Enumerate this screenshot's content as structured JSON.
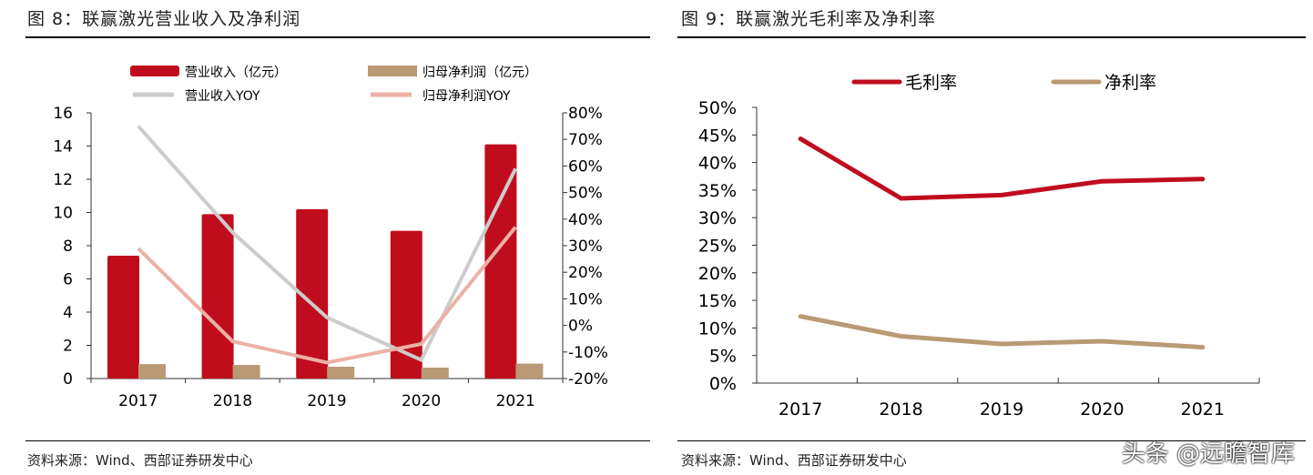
{
  "left": {
    "title": "图 8：联赢激光营业收入及净利润",
    "source": "资料来源：Wind、西部证券研发中心"
  },
  "right": {
    "title": "图 9：联赢激光毛利率及净利率",
    "source": "资料来源：Wind、西部证券研发中心"
  },
  "watermark": "头条 @远瞻智库",
  "chart_data": [
    {
      "type": "bar+line",
      "categories": [
        "2017",
        "2018",
        "2019",
        "2020",
        "2021"
      ],
      "y_left": {
        "ylim": [
          0,
          16
        ],
        "ticks": [
          "0",
          "2",
          "4",
          "6",
          "8",
          "10",
          "12",
          "14",
          "16"
        ]
      },
      "y_right": {
        "ylim": [
          -20,
          80
        ],
        "ticks": [
          "-20%",
          "-10%",
          "0%",
          "10%",
          "20%",
          "30%",
          "40%",
          "50%",
          "60%",
          "70%",
          "80%"
        ]
      },
      "legend_position": "top",
      "series": [
        {
          "name": "营业收入（亿元）",
          "type": "bar",
          "axis": "left",
          "color": "#C00D1E",
          "values": [
            7.4,
            9.9,
            10.2,
            8.9,
            14.1
          ]
        },
        {
          "name": "归母净利润（亿元）",
          "type": "bar",
          "axis": "left",
          "color": "#B99A74",
          "values": [
            0.87,
            0.82,
            0.71,
            0.66,
            0.9
          ]
        },
        {
          "name": "营业收入YOY",
          "type": "line",
          "axis": "right",
          "color": "#CCCCCC",
          "values": [
            75,
            35,
            3,
            -13,
            59
          ]
        },
        {
          "name": "归母净利润YOY",
          "type": "line",
          "axis": "right",
          "color": "#EBB1A6",
          "values": [
            29,
            -6,
            -14,
            -7,
            37
          ]
        }
      ]
    },
    {
      "type": "line",
      "categories": [
        "2017",
        "2018",
        "2019",
        "2020",
        "2021"
      ],
      "ylim": [
        0,
        50
      ],
      "ticks": [
        "0%",
        "5%",
        "10%",
        "15%",
        "20%",
        "25%",
        "30%",
        "35%",
        "40%",
        "45%",
        "50%"
      ],
      "legend_position": "top",
      "series": [
        {
          "name": "毛利率",
          "color": "#C00D1E",
          "values": [
            44.3,
            33.5,
            34.1,
            36.6,
            37.0
          ]
        },
        {
          "name": "净利率",
          "color": "#B99A74",
          "values": [
            12.1,
            8.5,
            7.1,
            7.6,
            6.5
          ]
        }
      ]
    }
  ]
}
